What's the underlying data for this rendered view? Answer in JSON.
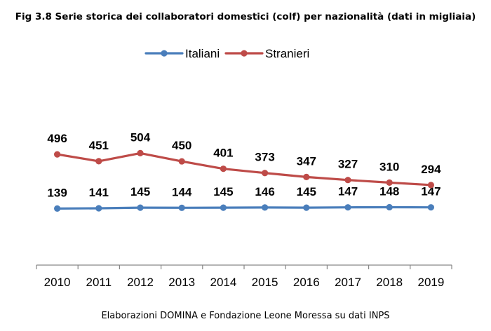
{
  "title": "Fig 3.8 Serie storica dei collaboratori domestici (colf) per nazionalità (dati in migliaia)",
  "source": "Elaborazioni DOMINA e Fondazione Leone Moressa su dati INPS",
  "chart_data": {
    "type": "line",
    "title": "Fig 3.8 Serie storica dei collaboratori domestici (colf) per nazionalità (dati in migliaia)",
    "xlabel": "",
    "ylabel": "",
    "ylim": [
      0,
      600
    ],
    "legend_position": "top-center",
    "grid": false,
    "categories": [
      "2010",
      "2011",
      "2012",
      "2013",
      "2014",
      "2015",
      "2016",
      "2017",
      "2018",
      "2019"
    ],
    "series": [
      {
        "name": "Italiani",
        "color": "#4a7ebb",
        "values": [
          139,
          141,
          145,
          144,
          145,
          146,
          145,
          147,
          148,
          147
        ]
      },
      {
        "name": "Stranieri",
        "color": "#be4b48",
        "values": [
          496,
          451,
          504,
          450,
          401,
          373,
          347,
          327,
          310,
          294
        ]
      }
    ]
  }
}
